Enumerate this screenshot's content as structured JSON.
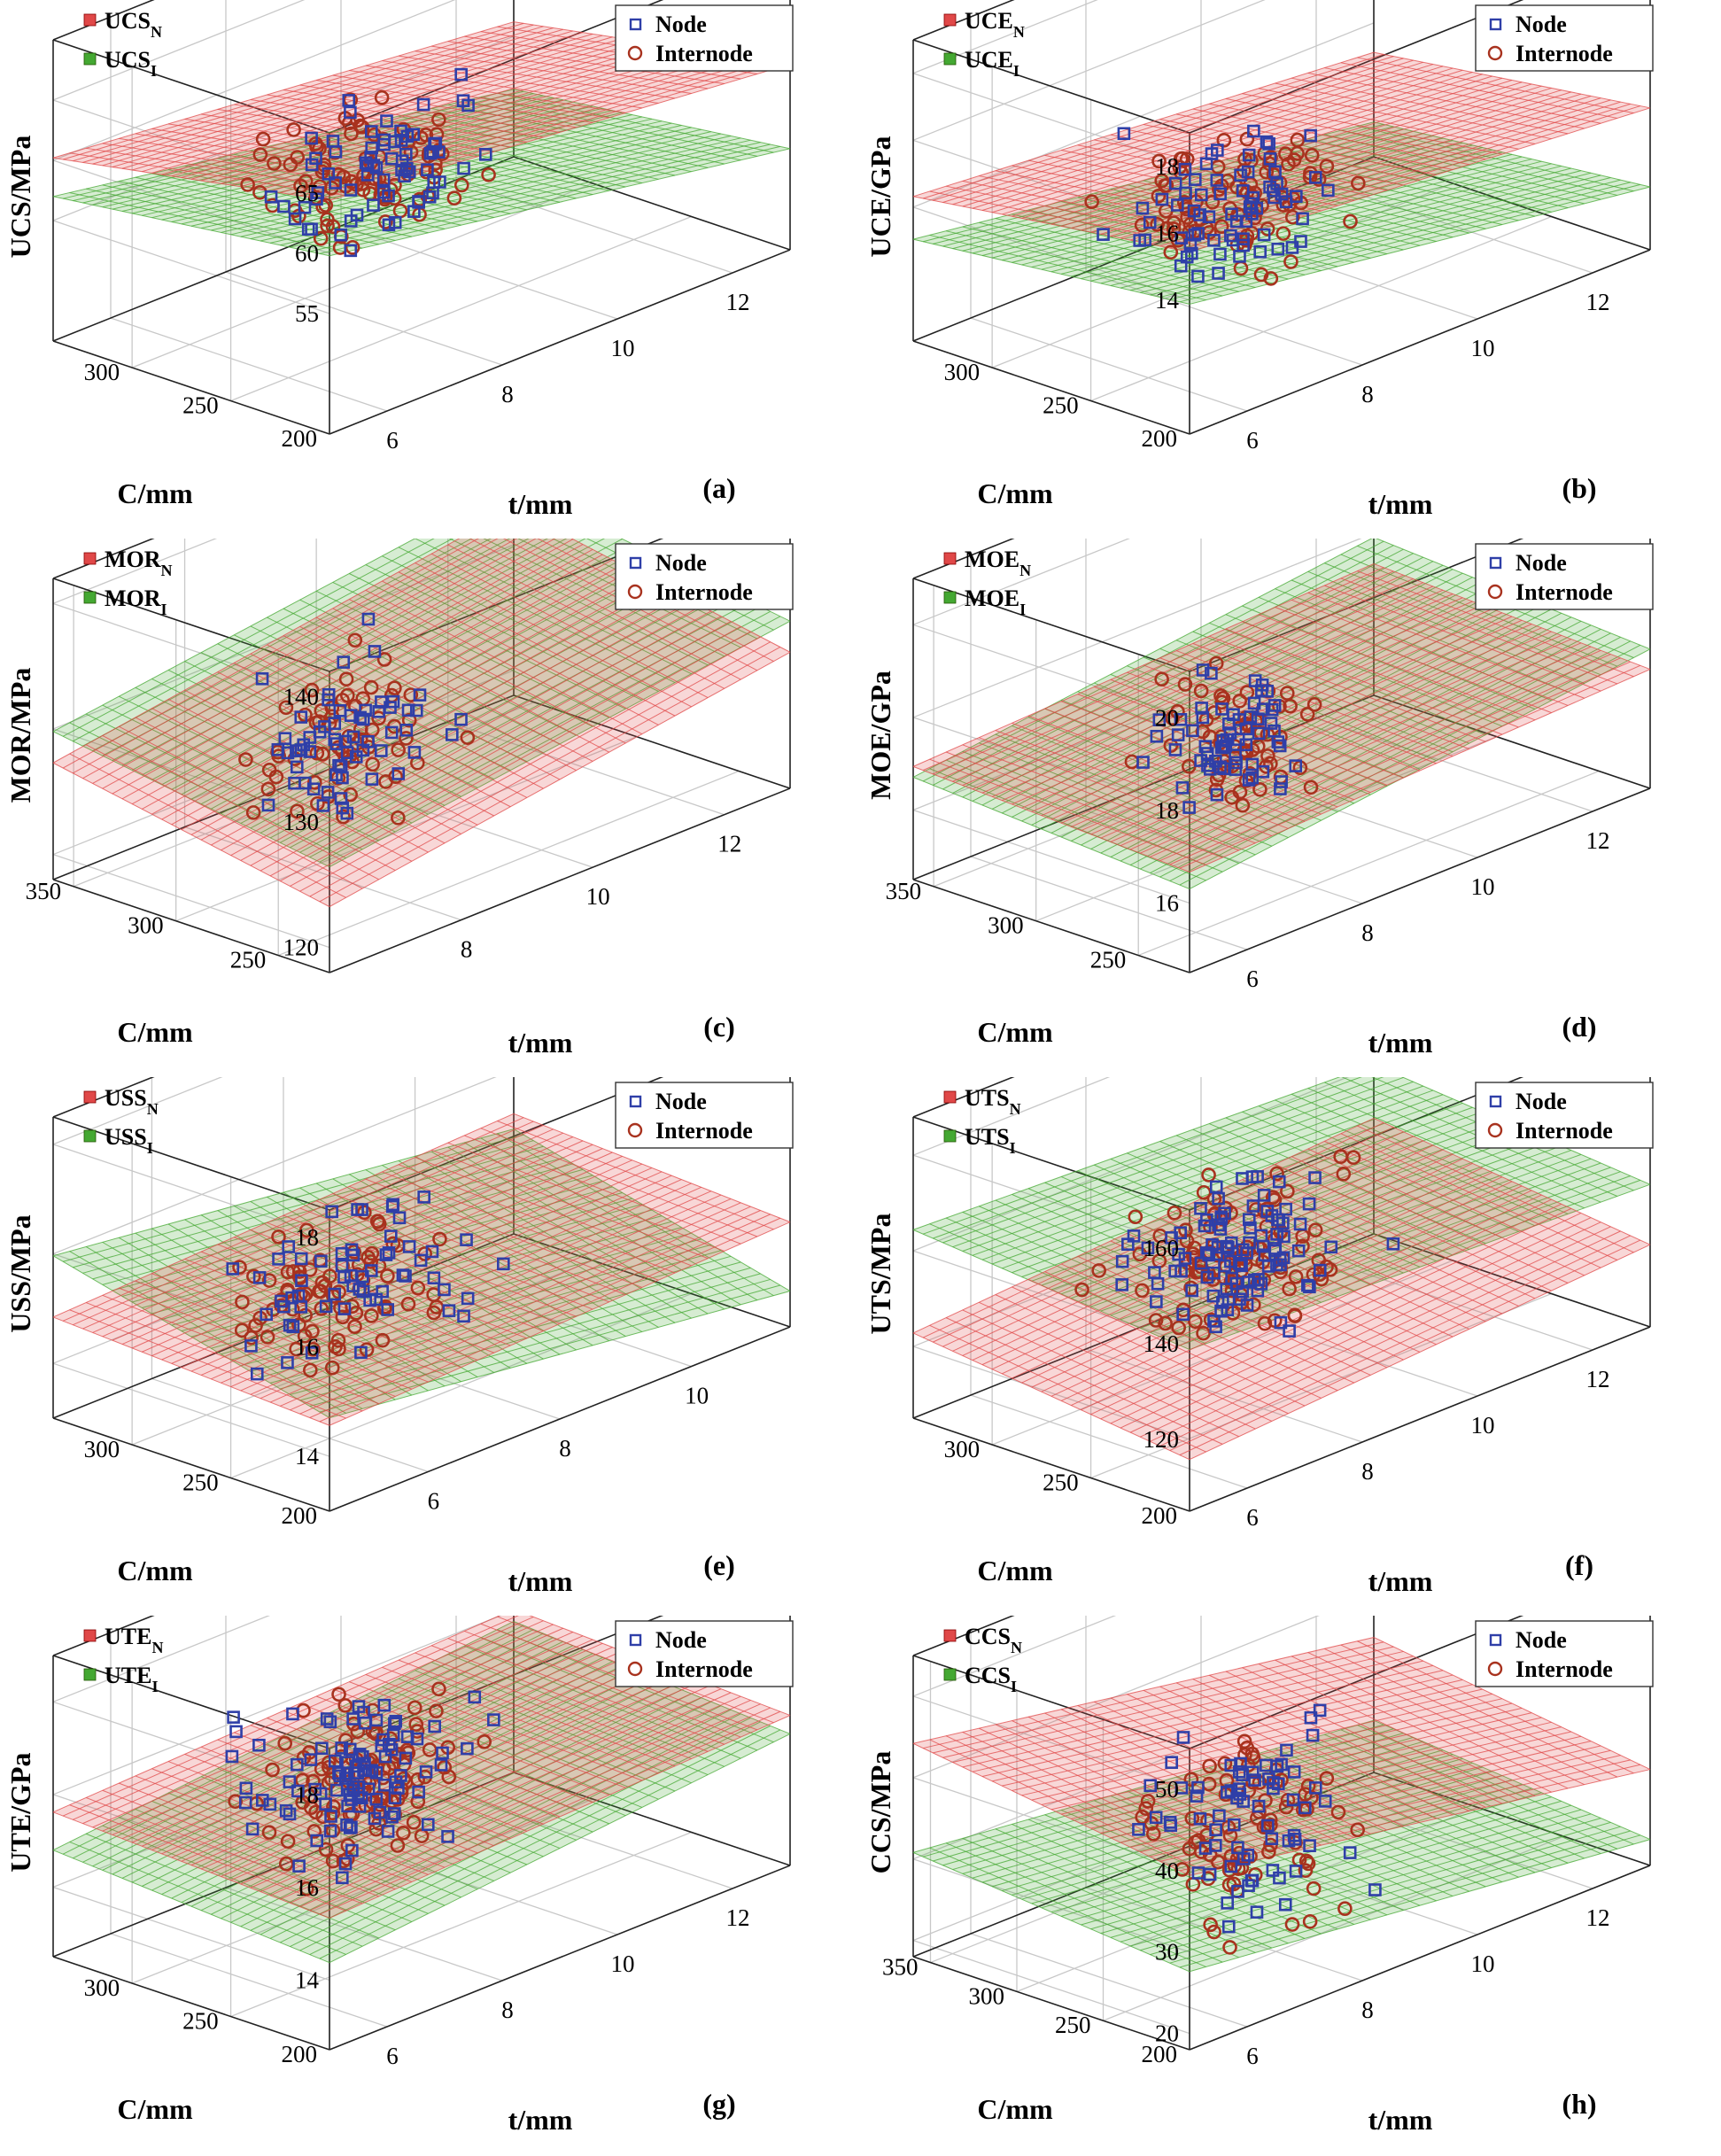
{
  "legend_labels": {
    "node": "Node",
    "internode": "Internode"
  },
  "colors": {
    "node": "#2f3fa8",
    "internode": "#a8321e",
    "surface_n": "#e04848",
    "surface_i": "#44a832",
    "grid": "#c8c8c8"
  },
  "chart_data": [
    {
      "type": "scatter3d",
      "panel": "(a)",
      "title": "UCS",
      "zlabel": "UCS/MPa",
      "xlabel": "t/mm",
      "ylabel": "C/mm",
      "surface_n": "UCS",
      "surface_i": "UCS",
      "xticks": [
        "6",
        "8",
        "10",
        "12"
      ],
      "yticks": [
        "200",
        "250",
        "300"
      ],
      "zticks": [
        "55",
        "60",
        "65"
      ],
      "xlim": [
        5,
        13
      ],
      "ylim": [
        200,
        340
      ],
      "zlim": [
        45,
        70
      ],
      "plane_n": [
        60,
        -0.5,
        -0.03,
        280
      ],
      "plane_i": [
        55,
        -0.8,
        -0.02,
        280
      ],
      "cloud": {
        "x": [
          8.5,
          1.2
        ],
        "y": [
          280,
          25
        ],
        "z": [
          56,
          5
        ],
        "n_node": 70,
        "n_inter": 90
      }
    },
    {
      "type": "scatter3d",
      "panel": "(b)",
      "title": "UCE",
      "zlabel": "UCE/GPa",
      "xlabel": "t/mm",
      "ylabel": "C/mm",
      "surface_n": "UCE",
      "surface_i": "UCE",
      "xticks": [
        "6",
        "8",
        "10",
        "12"
      ],
      "yticks": [
        "200",
        "250",
        "300"
      ],
      "zticks": [
        "14",
        "16",
        "18"
      ],
      "xlim": [
        5,
        13
      ],
      "ylim": [
        200,
        340
      ],
      "zlim": [
        10,
        19
      ],
      "plane_n": [
        14.2,
        -0.15,
        -0.008,
        280
      ],
      "plane_i": [
        12.4,
        -0.25,
        -0.006,
        280
      ],
      "cloud": {
        "x": [
          8.2,
          1.1
        ],
        "y": [
          270,
          25
        ],
        "z": [
          13.3,
          1.6
        ],
        "n_node": 70,
        "n_inter": 90
      }
    },
    {
      "type": "scatter3d",
      "panel": "(c)",
      "title": "MOR",
      "zlabel": "MOR/MPa",
      "xlabel": "t/mm",
      "ylabel": "C/mm",
      "surface_n": "MOR",
      "surface_i": "MOR",
      "xticks": [
        "8",
        "10",
        "12"
      ],
      "yticks": [
        "250",
        "300",
        "350"
      ],
      "zticks": [
        "120",
        "130",
        "140"
      ],
      "xlim": [
        6,
        13
      ],
      "ylim": [
        225,
        360
      ],
      "zlim": [
        118,
        142
      ],
      "plane_n": [
        128,
        0.8,
        0.03,
        290
      ],
      "plane_i": [
        130.5,
        0.7,
        0.025,
        290
      ],
      "cloud": {
        "x": [
          8.3,
          0.9
        ],
        "y": [
          290,
          20
        ],
        "z": [
          128,
          5
        ],
        "n_node": 60,
        "n_inter": 60
      }
    },
    {
      "type": "scatter3d",
      "panel": "(d)",
      "title": "MOE",
      "zlabel": "MOE/GPa",
      "xlabel": "t/mm",
      "ylabel": "C/mm",
      "surface_n": "MOE",
      "surface_i": "MOE",
      "xticks": [
        "6",
        "8",
        "10",
        "12"
      ],
      "yticks": [
        "250",
        "300",
        "350"
      ],
      "zticks": [
        "16",
        "18",
        "20"
      ],
      "xlim": [
        5,
        13
      ],
      "ylim": [
        225,
        360
      ],
      "zlim": [
        14.5,
        21
      ],
      "plane_n": [
        17,
        0.05,
        0.002,
        290
      ],
      "plane_i": [
        17.1,
        0.15,
        0.003,
        290
      ],
      "cloud": {
        "x": [
          8.2,
          0.9
        ],
        "y": [
          290,
          20
        ],
        "z": [
          16.9,
          1.1
        ],
        "n_node": 60,
        "n_inter": 60
      }
    },
    {
      "type": "scatter3d",
      "panel": "(e)",
      "title": "USS",
      "zlabel": "USS/MPa",
      "xlabel": "t/mm",
      "ylabel": "C/mm",
      "surface_n": "USS",
      "surface_i": "USS",
      "xticks": [
        "6",
        "8",
        "10"
      ],
      "yticks": [
        "200",
        "250",
        "300"
      ],
      "zticks": [
        "14",
        "16",
        "18"
      ],
      "xlim": [
        4.5,
        11.5
      ],
      "ylim": [
        200,
        340
      ],
      "zlim": [
        13,
        18.5
      ],
      "plane_n": [
        14.9,
        0.05,
        0.002,
        280
      ],
      "plane_i": [
        14.9,
        -0.15,
        0.009,
        280
      ],
      "cloud": {
        "x": [
          7.2,
          1.2
        ],
        "y": [
          280,
          25
        ],
        "z": [
          14.9,
          0.9
        ],
        "n_node": 60,
        "n_inter": 80
      }
    },
    {
      "type": "scatter3d",
      "panel": "(f)",
      "title": "UTS",
      "zlabel": "UTS/MPa",
      "xlabel": "t/mm",
      "ylabel": "C/mm",
      "surface_n": "UTS",
      "surface_i": "UTS",
      "xticks": [
        "6",
        "8",
        "10",
        "12"
      ],
      "yticks": [
        "200",
        "250",
        "300"
      ],
      "zticks": [
        "120",
        "140",
        "160"
      ],
      "xlim": [
        5,
        13
      ],
      "ylim": [
        200,
        340
      ],
      "zlim": [
        105,
        168
      ],
      "plane_n": [
        123,
        0.8,
        0.05,
        280
      ],
      "plane_i": [
        140,
        -0.5,
        0.04,
        280
      ],
      "cloud": {
        "x": [
          8.2,
          1.2
        ],
        "y": [
          270,
          25
        ],
        "z": [
          133,
          12
        ],
        "n_node": 100,
        "n_inter": 100
      }
    },
    {
      "type": "scatter3d",
      "panel": "(g)",
      "title": "UTE",
      "zlabel": "UTE/GPa",
      "xlabel": "t/mm",
      "ylabel": "C/mm",
      "surface_n": "UTE",
      "surface_i": "UTE",
      "xticks": [
        "6",
        "8",
        "10",
        "12"
      ],
      "yticks": [
        "200",
        "250",
        "300"
      ],
      "zticks": [
        "14",
        "16",
        "18"
      ],
      "xlim": [
        5,
        13
      ],
      "ylim": [
        200,
        340
      ],
      "zlim": [
        12.5,
        19
      ],
      "plane_n": [
        15.7,
        0.05,
        0.002,
        280
      ],
      "plane_i": [
        15.1,
        0.12,
        0.003,
        280
      ],
      "cloud": {
        "x": [
          8.2,
          1.3
        ],
        "y": [
          280,
          25
        ],
        "z": [
          15.5,
          1.3
        ],
        "n_node": 100,
        "n_inter": 100
      }
    },
    {
      "type": "scatter3d",
      "panel": "(h)",
      "title": "CCS",
      "zlabel": "CCS/MPa",
      "xlabel": "t/mm",
      "ylabel": "C/mm",
      "surface_n": "CCS",
      "surface_i": "CCS",
      "xticks": [
        "6",
        "8",
        "10",
        "12"
      ],
      "yticks": [
        "200",
        "250",
        "300",
        "350"
      ],
      "zticks": [
        "20",
        "30",
        "40",
        "50"
      ],
      "xlim": [
        5,
        13
      ],
      "ylim": [
        200,
        360
      ],
      "zlim": [
        18,
        55
      ],
      "plane_n": [
        37,
        -1.2,
        0.03,
        280
      ],
      "plane_i": [
        26,
        -0.8,
        0.02,
        280
      ],
      "cloud": {
        "x": [
          8.3,
          1.3
        ],
        "y": [
          280,
          30
        ],
        "z": [
          30,
          9
        ],
        "n_node": 70,
        "n_inter": 80
      }
    }
  ]
}
